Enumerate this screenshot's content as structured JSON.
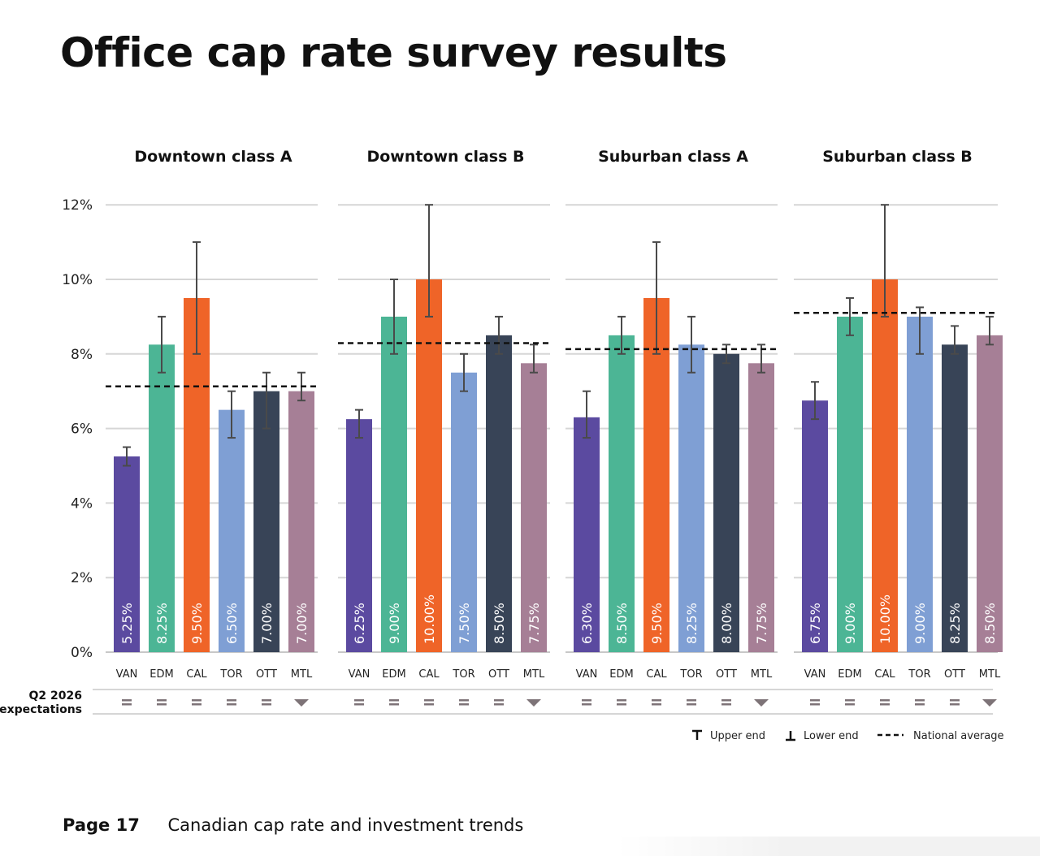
{
  "page": {
    "title": "Office cap rate survey results",
    "footer_page": "Page 17",
    "footer_text": "Canadian cap rate and investment trends"
  },
  "chart_data": {
    "type": "bar",
    "y_axis": {
      "ylim": [
        0,
        12
      ],
      "ticks": [
        0,
        2,
        4,
        6,
        8,
        10,
        12
      ],
      "tick_labels": [
        "0%",
        "2%",
        "4%",
        "6%",
        "8%",
        "10%",
        "12%"
      ],
      "grid": true
    },
    "categories": [
      "VAN",
      "EDM",
      "CAL",
      "TOR",
      "OTT",
      "MTL"
    ],
    "colors": [
      "#5b4aa0",
      "#4cb595",
      "#ef6428",
      "#7f9fd4",
      "#384457",
      "#a67f96"
    ],
    "expectations_label": "Q2 2026 expectations",
    "expectation_icons": {
      "flat": "equals-icon",
      "down": "down-triangle-icon"
    },
    "legend": {
      "position": "bottom-right",
      "upper": "Upper end",
      "lower": "Lower end",
      "national": "National average"
    },
    "panels": [
      {
        "title": "Downtown class A",
        "values": [
          5.25,
          8.25,
          9.5,
          6.5,
          7.0,
          7.0
        ],
        "labels": [
          "5.25%",
          "8.25%",
          "9.50%",
          "6.50%",
          "7.00%",
          "7.00%"
        ],
        "lower": [
          5.0,
          7.5,
          8.0,
          5.75,
          6.0,
          6.75
        ],
        "upper": [
          5.5,
          9.0,
          11.0,
          7.0,
          7.5,
          7.5
        ],
        "national_average": 7.13,
        "expectations": [
          "flat",
          "flat",
          "flat",
          "flat",
          "flat",
          "down"
        ]
      },
      {
        "title": "Downtown class B",
        "values": [
          6.25,
          9.0,
          10.0,
          7.5,
          8.5,
          7.75
        ],
        "labels": [
          "6.25%",
          "9.00%",
          "10.00%",
          "7.50%",
          "8.50%",
          "7.75%"
        ],
        "lower": [
          5.75,
          8.0,
          9.0,
          7.0,
          8.0,
          7.5
        ],
        "upper": [
          6.5,
          10.0,
          12.0,
          8.0,
          9.0,
          8.25
        ],
        "national_average": 8.29,
        "expectations": [
          "flat",
          "flat",
          "flat",
          "flat",
          "flat",
          "down"
        ]
      },
      {
        "title": "Suburban class A",
        "values": [
          6.3,
          8.5,
          9.5,
          8.25,
          8.0,
          7.75
        ],
        "labels": [
          "6.30%",
          "8.50%",
          "9.50%",
          "8.25%",
          "8.00%",
          "7.75%"
        ],
        "lower": [
          5.75,
          8.0,
          8.0,
          7.5,
          7.75,
          7.5
        ],
        "upper": [
          7.0,
          9.0,
          11.0,
          9.0,
          8.25,
          8.25
        ],
        "national_average": 8.13,
        "expectations": [
          "flat",
          "flat",
          "flat",
          "flat",
          "flat",
          "down"
        ]
      },
      {
        "title": "Suburban class B",
        "values": [
          6.75,
          9.0,
          10.0,
          9.0,
          8.25,
          8.5
        ],
        "labels": [
          "6.75%",
          "9.00%",
          "10.00%",
          "9.00%",
          "8.25%",
          "8.50%"
        ],
        "lower": [
          6.25,
          8.5,
          9.0,
          8.0,
          8.0,
          8.25
        ],
        "upper": [
          7.25,
          9.5,
          12.0,
          9.25,
          8.75,
          9.0
        ],
        "national_average": 9.1,
        "expectations": [
          "flat",
          "flat",
          "flat",
          "flat",
          "flat",
          "down"
        ]
      }
    ]
  }
}
